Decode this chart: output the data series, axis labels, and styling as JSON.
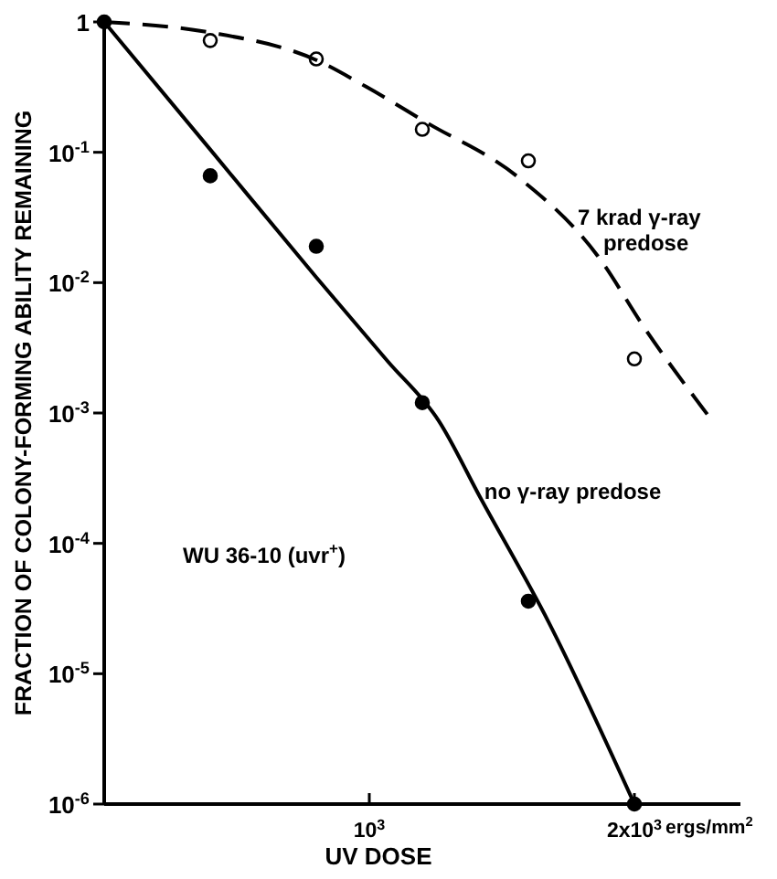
{
  "chart_data": {
    "type": "scatter",
    "xlabel": "UV DOSE",
    "ylabel": "FRACTION OF COLONY-FORMING ABILITY REMAINING",
    "log": "y",
    "xlim": [
      0,
      2400
    ],
    "ylim": [
      1e-06,
      1
    ],
    "xticks": [
      {
        "value": 1000,
        "label": "10$^{3}$"
      },
      {
        "value": 2000,
        "label": "2x10$^{3}$"
      }
    ],
    "yticks": [
      {
        "value": 1,
        "label": "1"
      },
      {
        "value": 0.1,
        "label": "10$^{-1}$"
      },
      {
        "value": 0.01,
        "label": "10$^{-2}$"
      },
      {
        "value": 0.001,
        "label": "10$^{-3}$"
      },
      {
        "value": 0.0001,
        "label": "10$^{-4}$"
      },
      {
        "value": 1e-05,
        "label": "10$^{-5}$"
      },
      {
        "value": 1e-06,
        "label": "10$^{-6}$"
      }
    ],
    "grid": false,
    "series": [
      {
        "type": "scatter",
        "marker": "circle",
        "color": "#000000",
        "x": [
          0,
          400,
          800,
          1200,
          1600,
          2000
        ],
        "values": [
          1,
          0.066,
          0.019,
          0.0012,
          3.6e-05,
          1e-06
        ]
      },
      {
        "type": "scatter",
        "marker": "circle",
        "color": "#ffffff",
        "x": [
          400,
          800,
          1200,
          1600,
          2000
        ],
        "values": [
          0.72,
          0.52,
          0.15,
          0.086,
          0.0026
        ]
      },
      {
        "type": "line",
        "line_style": "solid",
        "color": "#000000",
        "x": [
          0,
          400,
          800,
          1069,
          1262,
          1421,
          1676,
          2000
        ],
        "values": [
          1,
          0.105,
          0.011,
          0.0025,
          0.00087,
          0.00022,
          2.5e-05,
          1e-06
        ]
      },
      {
        "type": "line",
        "line_style": "dashed",
        "color": "#000000",
        "x": [
          0,
          400,
          800,
          986,
          1214,
          1559,
          1862,
          2041,
          2283
        ],
        "values": [
          1,
          0.83,
          0.51,
          0.32,
          0.17,
          0.065,
          0.016,
          0.0044,
          0.00093
        ]
      }
    ],
    "annotations": [
      {
        "text": "7 krad γ-ray\npredose",
        "x": 1786,
        "y": 0.028
      },
      {
        "text": "no γ-ray predose",
        "x": 1434,
        "y": 0.00022
      },
      "WU 36-10 (uvr$^{+}$)",
      "ergs/mm$^{2}$"
    ]
  }
}
